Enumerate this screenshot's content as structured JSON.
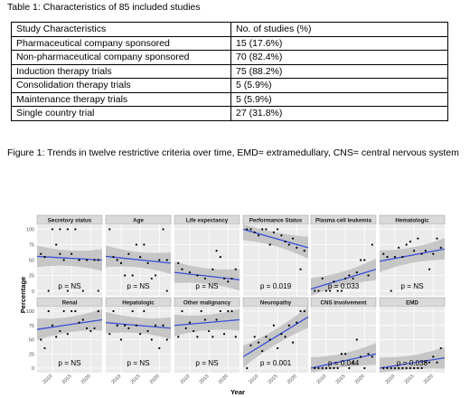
{
  "table": {
    "caption": "Table 1: Characteristics of 85 included studies",
    "headers": [
      "Study Characteristics",
      "No. of studies (%)"
    ],
    "rows": [
      [
        "Pharmaceutical company sponsored",
        "15 (17.6%)"
      ],
      [
        "Non-pharmaceutical company sponsored",
        "70 (82.4%)"
      ],
      [
        "Induction therapy trials",
        "75 (88.2%)"
      ],
      [
        "Consolidation therapy trials",
        "5 (5.9%)"
      ],
      [
        "Maintenance therapy trials",
        "5 (5.9%)"
      ],
      [
        "Single country trial",
        "27 (31.8%)"
      ]
    ]
  },
  "figure": {
    "caption": "Figure 1: Trends in twelve restrictive criteria over time, EMD= extramedullary, CNS= central nervous system"
  },
  "chart_data": {
    "type": "scatter",
    "xlabel": "Year",
    "ylabel": "Percentage",
    "x_ticks": [
      2010,
      2015,
      2020
    ],
    "y_ticks": [
      0,
      25,
      50,
      75,
      100
    ],
    "xlim": [
      2006,
      2023
    ],
    "ylim": [
      -8,
      108
    ],
    "grid": true,
    "colors": {
      "fit": "#3b4fd6",
      "band": "#bfbfbf",
      "point": "#000000",
      "strip": "#d9d9d9",
      "panel": "#ebebeb"
    },
    "panels": [
      {
        "title": "Secretory status",
        "p": "p = NS",
        "fit": [
          [
            2006,
            56
          ],
          [
            2023,
            50
          ]
        ],
        "points": [
          [
            2007,
            60
          ],
          [
            2008,
            55
          ],
          [
            2009,
            0
          ],
          [
            2010,
            100
          ],
          [
            2011,
            75
          ],
          [
            2012,
            60
          ],
          [
            2012,
            100
          ],
          [
            2013,
            50
          ],
          [
            2014,
            0
          ],
          [
            2014,
            100
          ],
          [
            2015,
            60
          ],
          [
            2016,
            100
          ],
          [
            2017,
            50
          ],
          [
            2018,
            0
          ],
          [
            2019,
            50
          ],
          [
            2021,
            50
          ],
          [
            2022,
            50
          ],
          [
            2022,
            0
          ]
        ]
      },
      {
        "title": "Age",
        "p": "p = NS",
        "fit": [
          [
            2006,
            56
          ],
          [
            2023,
            45
          ]
        ],
        "points": [
          [
            2007,
            100
          ],
          [
            2008,
            55
          ],
          [
            2009,
            50
          ],
          [
            2010,
            45
          ],
          [
            2011,
            25
          ],
          [
            2012,
            60
          ],
          [
            2013,
            25
          ],
          [
            2014,
            75
          ],
          [
            2015,
            55
          ],
          [
            2016,
            75
          ],
          [
            2017,
            45
          ],
          [
            2018,
            20
          ],
          [
            2019,
            25
          ],
          [
            2020,
            50
          ],
          [
            2021,
            100
          ],
          [
            2022,
            50
          ],
          [
            2022,
            0
          ]
        ]
      },
      {
        "title": "Life expectancy",
        "p": "p = NS",
        "fit": [
          [
            2006,
            30
          ],
          [
            2023,
            18
          ]
        ],
        "points": [
          [
            2007,
            45
          ],
          [
            2008,
            35
          ],
          [
            2010,
            30
          ],
          [
            2012,
            25
          ],
          [
            2014,
            20
          ],
          [
            2016,
            35
          ],
          [
            2017,
            65
          ],
          [
            2018,
            55
          ],
          [
            2019,
            20
          ],
          [
            2020,
            15
          ],
          [
            2021,
            20
          ],
          [
            2022,
            35
          ]
        ]
      },
      {
        "title": "Performance Status",
        "p": "p = 0.019",
        "fit": [
          [
            2006,
            100
          ],
          [
            2023,
            70
          ]
        ],
        "points": [
          [
            2007,
            100
          ],
          [
            2008,
            100
          ],
          [
            2009,
            95
          ],
          [
            2010,
            90
          ],
          [
            2011,
            100
          ],
          [
            2012,
            100
          ],
          [
            2013,
            75
          ],
          [
            2014,
            95
          ],
          [
            2015,
            100
          ],
          [
            2016,
            90
          ],
          [
            2017,
            80
          ],
          [
            2018,
            75
          ],
          [
            2019,
            85
          ],
          [
            2020,
            70
          ],
          [
            2021,
            35
          ],
          [
            2022,
            65
          ]
        ]
      },
      {
        "title": "Plasma cell leukemia",
        "p": "p = 0.033",
        "fit": [
          [
            2006,
            3
          ],
          [
            2023,
            35
          ]
        ],
        "points": [
          [
            2007,
            0
          ],
          [
            2008,
            0
          ],
          [
            2009,
            20
          ],
          [
            2010,
            0
          ],
          [
            2011,
            0
          ],
          [
            2012,
            15
          ],
          [
            2013,
            0
          ],
          [
            2014,
            0
          ],
          [
            2015,
            20
          ],
          [
            2016,
            25
          ],
          [
            2017,
            20
          ],
          [
            2018,
            30
          ],
          [
            2019,
            50
          ],
          [
            2020,
            50
          ],
          [
            2021,
            25
          ],
          [
            2022,
            75
          ]
        ]
      },
      {
        "title": "Hematologic",
        "p": "p = NS",
        "fit": [
          [
            2006,
            48
          ],
          [
            2023,
            68
          ]
        ],
        "points": [
          [
            2007,
            60
          ],
          [
            2008,
            55
          ],
          [
            2009,
            0
          ],
          [
            2010,
            55
          ],
          [
            2011,
            70
          ],
          [
            2012,
            55
          ],
          [
            2013,
            75
          ],
          [
            2014,
            80
          ],
          [
            2015,
            65
          ],
          [
            2016,
            85
          ],
          [
            2017,
            60
          ],
          [
            2018,
            65
          ],
          [
            2019,
            35
          ],
          [
            2020,
            60
          ],
          [
            2021,
            85
          ],
          [
            2022,
            70
          ]
        ]
      },
      {
        "title": "Renal",
        "p": "p = NS",
        "fit": [
          [
            2006,
            68
          ],
          [
            2023,
            85
          ]
        ],
        "points": [
          [
            2007,
            50
          ],
          [
            2008,
            35
          ],
          [
            2009,
            100
          ],
          [
            2010,
            75
          ],
          [
            2011,
            55
          ],
          [
            2012,
            65
          ],
          [
            2013,
            100
          ],
          [
            2014,
            60
          ],
          [
            2015,
            100
          ],
          [
            2016,
            100
          ],
          [
            2017,
            80
          ],
          [
            2018,
            85
          ],
          [
            2019,
            70
          ],
          [
            2020,
            65
          ],
          [
            2021,
            70
          ],
          [
            2022,
            100
          ]
        ]
      },
      {
        "title": "Hepatologic",
        "p": "p = NS",
        "fit": [
          [
            2006,
            80
          ],
          [
            2023,
            70
          ]
        ],
        "points": [
          [
            2007,
            60
          ],
          [
            2008,
            100
          ],
          [
            2009,
            75
          ],
          [
            2010,
            50
          ],
          [
            2011,
            75
          ],
          [
            2012,
            70
          ],
          [
            2013,
            100
          ],
          [
            2014,
            75
          ],
          [
            2015,
            60
          ],
          [
            2016,
            100
          ],
          [
            2017,
            65
          ],
          [
            2018,
            50
          ],
          [
            2019,
            75
          ],
          [
            2020,
            35
          ],
          [
            2021,
            75
          ],
          [
            2022,
            50
          ]
        ]
      },
      {
        "title": "Other malignancy",
        "p": "p = NS",
        "fit": [
          [
            2006,
            75
          ],
          [
            2023,
            85
          ]
        ],
        "points": [
          [
            2007,
            55
          ],
          [
            2008,
            100
          ],
          [
            2009,
            70
          ],
          [
            2010,
            80
          ],
          [
            2011,
            65
          ],
          [
            2012,
            55
          ],
          [
            2013,
            100
          ],
          [
            2014,
            85
          ],
          [
            2015,
            65
          ],
          [
            2016,
            55
          ],
          [
            2017,
            85
          ],
          [
            2018,
            100
          ],
          [
            2019,
            60
          ],
          [
            2020,
            100
          ],
          [
            2021,
            100
          ],
          [
            2022,
            55
          ]
        ]
      },
      {
        "title": "Neuropathy",
        "p": "p = 0.001",
        "fit": [
          [
            2006,
            20
          ],
          [
            2023,
            90
          ]
        ],
        "points": [
          [
            2007,
            0
          ],
          [
            2008,
            40
          ],
          [
            2009,
            55
          ],
          [
            2010,
            45
          ],
          [
            2011,
            30
          ],
          [
            2012,
            55
          ],
          [
            2013,
            50
          ],
          [
            2014,
            75
          ],
          [
            2015,
            35
          ],
          [
            2016,
            60
          ],
          [
            2017,
            55
          ],
          [
            2018,
            75
          ],
          [
            2019,
            45
          ],
          [
            2020,
            80
          ],
          [
            2021,
            100
          ],
          [
            2022,
            100
          ]
        ]
      },
      {
        "title": "CNS involvement",
        "p": "p = 0.044",
        "fit": [
          [
            2006,
            0
          ],
          [
            2023,
            25
          ]
        ],
        "points": [
          [
            2007,
            0
          ],
          [
            2008,
            0
          ],
          [
            2009,
            0
          ],
          [
            2010,
            0
          ],
          [
            2011,
            0
          ],
          [
            2012,
            0
          ],
          [
            2013,
            0
          ],
          [
            2014,
            25
          ],
          [
            2015,
            25
          ],
          [
            2016,
            0
          ],
          [
            2017,
            10
          ],
          [
            2018,
            50
          ],
          [
            2019,
            20
          ],
          [
            2020,
            0
          ],
          [
            2021,
            25
          ],
          [
            2022,
            20
          ]
        ]
      },
      {
        "title": "EMD",
        "p": "p = 0.038",
        "fit": [
          [
            2006,
            0
          ],
          [
            2023,
            18
          ]
        ],
        "points": [
          [
            2007,
            0
          ],
          [
            2008,
            0
          ],
          [
            2009,
            0
          ],
          [
            2010,
            0
          ],
          [
            2011,
            0
          ],
          [
            2012,
            0
          ],
          [
            2013,
            0
          ],
          [
            2014,
            0
          ],
          [
            2015,
            0
          ],
          [
            2016,
            0
          ],
          [
            2017,
            0
          ],
          [
            2018,
            10
          ],
          [
            2019,
            10
          ],
          [
            2020,
            20
          ],
          [
            2021,
            10
          ],
          [
            2022,
            35
          ]
        ]
      }
    ]
  }
}
